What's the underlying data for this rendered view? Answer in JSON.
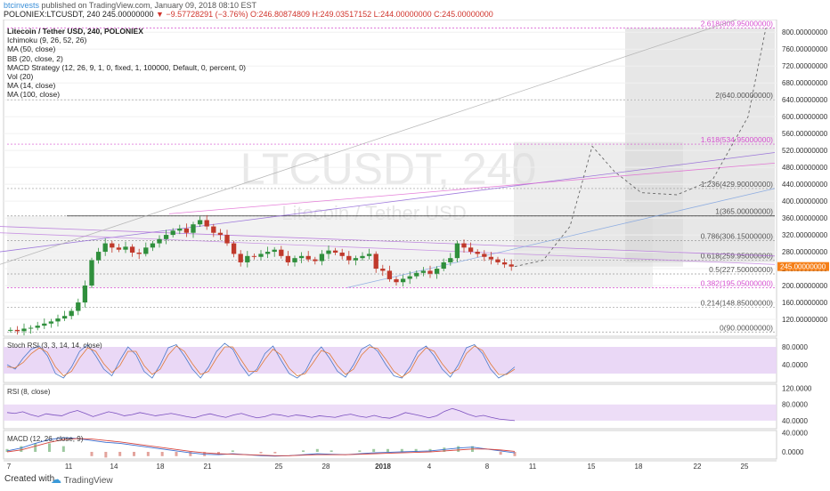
{
  "header": {
    "author": "btcinvests",
    "published_text": "published on TradingView.com, January 09, 2018 08:10 EST",
    "symbol_line": "POLONIEX:LTCUSDT, 240",
    "last": "245.00000000",
    "change": "▼ −9.57728291 (−3.76%)",
    "ohlc": "O:246.80874809 H:249.03517152 L:244.00000000 C:245.00000000"
  },
  "legend": {
    "title": "Litecoin / Tether USD, 240, POLONIEX",
    "items": [
      "Ichimoku (9, 26, 52, 26)",
      "MA (50, close)",
      "BB (20, close, 2)",
      "MACD Strategy (12, 26, 9, 1, 0, fixed, 1, 100000, Default, 0, percent, 0)",
      "Vol (20)",
      "MA (14, close)",
      "MA (100, close)"
    ]
  },
  "watermark": {
    "symbol": "LTCUSDT, 240",
    "name": "Litecoin / Tether USD"
  },
  "colors": {
    "up": "#2f8f3c",
    "down": "#c0392b",
    "fib": "#777777",
    "fibAlt": "#d64fd0",
    "price_badge": "#f57f17",
    "rsi_band": "#e8d4f5"
  },
  "chart_data": [
    {
      "type": "candlestick",
      "title": "Litecoin / Tether USD, 240, POLONIEX",
      "x_ticks": [
        "7",
        "11",
        "14",
        "18",
        "21",
        "25",
        "28",
        "2018",
        "4",
        "8",
        "11",
        "15",
        "18",
        "22",
        "25"
      ],
      "ylim": [
        80,
        830
      ],
      "y_ticks": [
        "800.00000000",
        "760.00000000",
        "720.00000000",
        "680.00000000",
        "640.00000000",
        "600.00000000",
        "560.00000000",
        "520.00000000",
        "480.00000000",
        "440.00000000",
        "400.00000000",
        "360.00000000",
        "320.00000000",
        "280.00000000",
        "240.00000000",
        "200.00000000",
        "160.00000000",
        "120.00000000"
      ],
      "last_price": "245.00000000",
      "close_series_approx": [
        95,
        92,
        98,
        100,
        105,
        110,
        115,
        122,
        128,
        140,
        160,
        200,
        260,
        280,
        300,
        290,
        285,
        292,
        278,
        275,
        290,
        300,
        310,
        320,
        330,
        335,
        325,
        345,
        355,
        340,
        325,
        320,
        300,
        275,
        255,
        270,
        268,
        275,
        280,
        285,
        270,
        255,
        265,
        270,
        262,
        258,
        275,
        283,
        278,
        270,
        260,
        265,
        270,
        275,
        240,
        235,
        215,
        208,
        216,
        222,
        230,
        235,
        228,
        240,
        255,
        265,
        300,
        290,
        280,
        275,
        268,
        262,
        255,
        250,
        245
      ],
      "fib_levels": [
        {
          "ratio": "2.618",
          "value": "809.95000000"
        },
        {
          "ratio": "2",
          "value": "640.00000000"
        },
        {
          "ratio": "1.618",
          "value": "534.95000000"
        },
        {
          "ratio": "1.236",
          "value": "429.90000000"
        },
        {
          "ratio": "1",
          "value": "365.00000000"
        },
        {
          "ratio": "0.786",
          "value": "306.15000000"
        },
        {
          "ratio": "0.618",
          "value": "259.95000000"
        },
        {
          "ratio": "0.5",
          "value": "227.50000000"
        },
        {
          "ratio": "0.382",
          "value": "195.05000000"
        },
        {
          "ratio": "0.214",
          "value": "148.85000000"
        },
        {
          "ratio": "0",
          "value": "90.00000000"
        }
      ]
    },
    {
      "type": "line",
      "title": "Stoch RSI (3, 3, 14, 14, close)",
      "y_ticks": [
        "80.0000",
        "40.0000"
      ],
      "series": [
        {
          "values": [
            40,
            30,
            55,
            75,
            82,
            60,
            20,
            10,
            35,
            70,
            85,
            60,
            30,
            15,
            50,
            80,
            62,
            25,
            10,
            40,
            78,
            85,
            60,
            30,
            10,
            35,
            70,
            88,
            75,
            40,
            15,
            30,
            65,
            82,
            50,
            20,
            10,
            25,
            60,
            80,
            55,
            25,
            12,
            40,
            75,
            85,
            70,
            40,
            15,
            10,
            35,
            70,
            82,
            60,
            30,
            12,
            40,
            78,
            85,
            65,
            30,
            10,
            20,
            35
          ]
        },
        {
          "values": [
            35,
            33,
            45,
            65,
            78,
            68,
            35,
            15,
            25,
            55,
            78,
            70,
            42,
            22,
            38,
            70,
            70,
            38,
            18,
            30,
            62,
            82,
            70,
            42,
            18,
            25,
            55,
            80,
            80,
            52,
            25,
            25,
            52,
            75,
            62,
            32,
            15,
            20,
            45,
            72,
            65,
            38,
            18,
            30,
            62,
            80,
            76,
            52,
            25,
            12,
            25,
            58,
            78,
            70,
            42,
            20,
            30,
            65,
            82,
            72,
            42,
            18,
            18,
            30
          ]
        }
      ]
    },
    {
      "type": "line",
      "title": "RSI (8, close)",
      "y_ticks": [
        "120.0000",
        "80.0000",
        "40.0000"
      ],
      "series": [
        {
          "values": [
            60,
            58,
            62,
            55,
            50,
            57,
            54,
            52,
            60,
            65,
            58,
            50,
            56,
            62,
            58,
            52,
            55,
            60,
            56,
            52,
            55,
            58,
            54,
            50,
            47,
            53,
            57,
            52,
            48,
            54,
            58,
            52,
            47,
            50,
            56,
            54,
            50,
            54,
            52,
            48,
            52,
            50,
            48,
            53,
            56,
            51,
            48,
            53,
            48,
            46,
            52,
            60,
            56,
            52,
            47,
            52,
            63,
            70,
            64,
            56,
            50,
            53,
            48,
            44,
            42,
            40
          ]
        }
      ]
    },
    {
      "type": "line",
      "title": "MACD (12, 26, close, 9)",
      "y_ticks": [
        "40.0000",
        "0.0000"
      ],
      "series": [
        {
          "values": [
            2,
            8,
            18,
            26,
            30,
            28,
            24,
            20,
            18,
            14,
            10,
            6,
            2,
            -2,
            -5,
            -6,
            -4,
            -6,
            -8,
            -9,
            -8,
            -6,
            -4,
            -5,
            -6,
            -4,
            -2,
            -1,
            0,
            1,
            2,
            5,
            8,
            10,
            6,
            2,
            -2
          ]
        },
        {
          "values": [
            0,
            4,
            12,
            20,
            26,
            28,
            27,
            24,
            21,
            17,
            13,
            9,
            5,
            1,
            -2,
            -4,
            -5,
            -6,
            -7,
            -8,
            -8,
            -7,
            -6,
            -6,
            -6,
            -5,
            -4,
            -3,
            -2,
            -1,
            0,
            2,
            4,
            6,
            6,
            4,
            1
          ]
        }
      ]
    }
  ],
  "footer": {
    "created_with": "Created with",
    "brand": "TradingView"
  }
}
